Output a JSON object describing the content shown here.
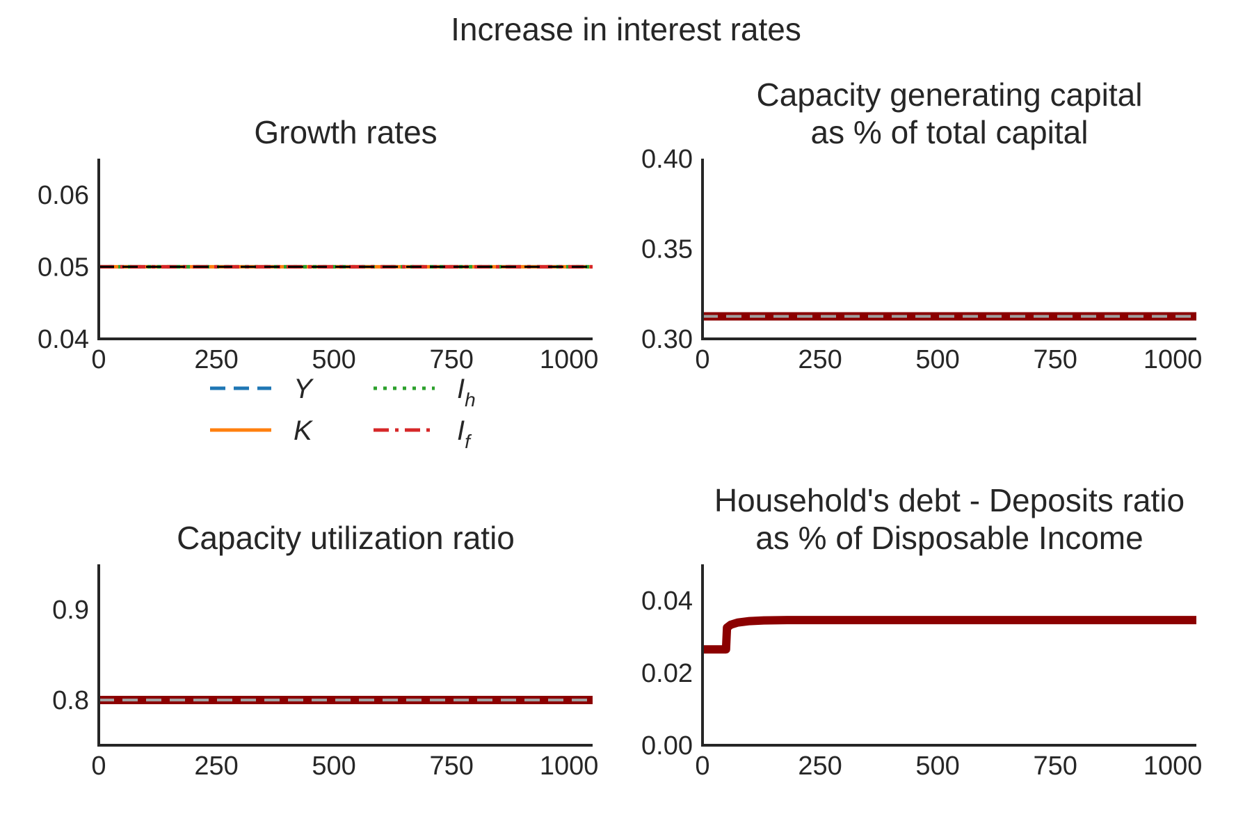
{
  "figure": {
    "title": "Increase in interest rates"
  },
  "chart_data": [
    {
      "id": "growth",
      "type": "line",
      "title_lines": [
        "Growth rates"
      ],
      "xlim": [
        0,
        1050
      ],
      "ylim": [
        0.04,
        0.065
      ],
      "xticks": [
        0,
        250,
        500,
        750,
        1000
      ],
      "xtick_labels": [
        "0",
        "250",
        "500",
        "750",
        "1000"
      ],
      "yticks": [
        0.04,
        0.05,
        0.06
      ],
      "ytick_labels": [
        "0.04",
        "0.05",
        "0.06"
      ],
      "legend_position": "below",
      "series": [
        {
          "name": "Y",
          "legend_sub": "",
          "color": "#1f77b4",
          "style": "dashed",
          "width": 5,
          "points": [
            [
              0,
              0.05
            ],
            [
              1050,
              0.05
            ]
          ]
        },
        {
          "name": "K",
          "legend_sub": "",
          "color": "#ff7f0e",
          "style": "solid",
          "width": 5,
          "points": [
            [
              0,
              0.05
            ],
            [
              1050,
              0.05
            ]
          ]
        },
        {
          "name": "I",
          "legend_sub": "h",
          "color": "#2ca02c",
          "style": "dotted",
          "width": 5,
          "points": [
            [
              0,
              0.05
            ],
            [
              1050,
              0.05
            ]
          ]
        },
        {
          "name": "I",
          "legend_sub": "f",
          "color": "#d62728",
          "style": "dashdot",
          "width": 5,
          "points": [
            [
              0,
              0.05
            ],
            [
              1050,
              0.05
            ]
          ]
        }
      ],
      "reference_lines": [
        {
          "y": 0.05,
          "color": "#000000",
          "style": "dashed",
          "width": 3
        }
      ]
    },
    {
      "id": "capacity-capital",
      "type": "line",
      "title_lines": [
        "Capacity generating capital",
        "as % of total capital"
      ],
      "xlim": [
        0,
        1050
      ],
      "ylim": [
        0.3,
        0.4
      ],
      "xticks": [
        0,
        250,
        500,
        750,
        1000
      ],
      "xtick_labels": [
        "0",
        "250",
        "500",
        "750",
        "1000"
      ],
      "yticks": [
        0.3,
        0.35,
        0.4
      ],
      "ytick_labels": [
        "0.30",
        "0.35",
        "0.40"
      ],
      "series": [
        {
          "name": "",
          "color": "#8b0000",
          "style": "solid",
          "width": 12,
          "points": [
            [
              0,
              0.3125
            ],
            [
              1050,
              0.3125
            ]
          ]
        }
      ],
      "reference_lines": [
        {
          "y": 0.3125,
          "color": "#a0a0a0",
          "style": "dashed",
          "width": 4
        }
      ]
    },
    {
      "id": "capacity-utilization",
      "type": "line",
      "title_lines": [
        "Capacity utilization ratio"
      ],
      "xlim": [
        0,
        1050
      ],
      "ylim": [
        0.75,
        0.95
      ],
      "xticks": [
        0,
        250,
        500,
        750,
        1000
      ],
      "xtick_labels": [
        "0",
        "250",
        "500",
        "750",
        "1000"
      ],
      "yticks": [
        0.8,
        0.9
      ],
      "ytick_labels": [
        "0.8",
        "0.9"
      ],
      "series": [
        {
          "name": "",
          "color": "#8b0000",
          "style": "solid",
          "width": 12,
          "points": [
            [
              0,
              0.8
            ],
            [
              1050,
              0.8
            ]
          ]
        }
      ],
      "reference_lines": [
        {
          "y": 0.8,
          "color": "#a0a0a0",
          "style": "dashed",
          "width": 4
        }
      ]
    },
    {
      "id": "household-debt",
      "type": "line",
      "title_lines": [
        "Household's debt - Deposits ratio",
        "as % of Disposable Income"
      ],
      "xlim": [
        0,
        1050
      ],
      "ylim": [
        0,
        0.05
      ],
      "xticks": [
        0,
        250,
        500,
        750,
        1000
      ],
      "xtick_labels": [
        "0",
        "250",
        "500",
        "750",
        "1000"
      ],
      "yticks": [
        0,
        0.02,
        0.04
      ],
      "ytick_labels": [
        "0.00",
        "0.02",
        "0.04"
      ],
      "series": [
        {
          "name": "",
          "color": "#8b0000",
          "style": "solid",
          "width": 12,
          "points": [
            [
              0,
              0.0265
            ],
            [
              50,
              0.0265
            ],
            [
              52,
              0.0325
            ],
            [
              60,
              0.0333
            ],
            [
              75,
              0.0339
            ],
            [
              100,
              0.0343
            ],
            [
              130,
              0.0345
            ],
            [
              180,
              0.0346
            ],
            [
              300,
              0.0346
            ],
            [
              1050,
              0.0346
            ]
          ]
        }
      ]
    }
  ]
}
